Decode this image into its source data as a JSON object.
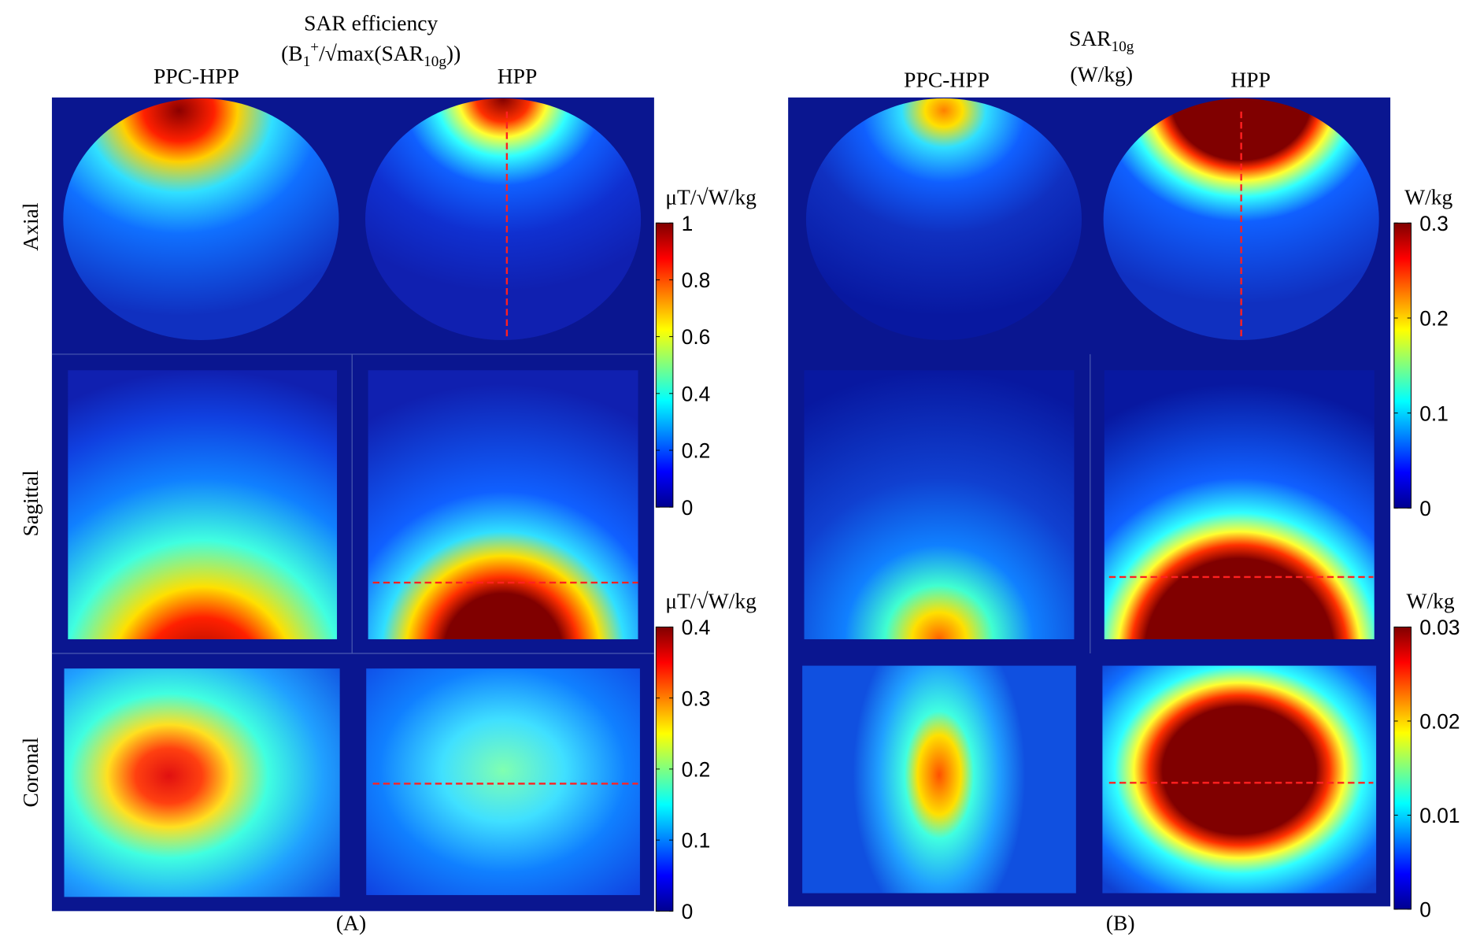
{
  "panel_a": {
    "title": "SAR efficiency",
    "formula_parts": [
      {
        "text": "(B"
      },
      {
        "text": "1",
        "script": "sub"
      },
      {
        "text": "+",
        "script": "sup"
      },
      {
        "text": "/√max(SAR"
      },
      {
        "text": "10g",
        "script": "sub"
      },
      {
        "text": "))"
      }
    ],
    "columns": [
      "PPC-HPP",
      "HPP"
    ],
    "rows": [
      "Axial",
      "Sagittal",
      "Coronal"
    ],
    "colorbars": [
      {
        "unit": "μT/√W/kg",
        "lim": [
          0,
          1
        ],
        "ticks": [
          0,
          0.2,
          0.4,
          0.6,
          0.8,
          1
        ]
      },
      {
        "unit": "μT/√W/kg",
        "lim": [
          0,
          0.4
        ],
        "ticks": [
          0,
          0.1,
          0.2,
          0.3,
          0.4
        ]
      }
    ],
    "caption": "(A)"
  },
  "panel_b": {
    "formula_parts": [
      {
        "text": "SAR"
      },
      {
        "text": "10g",
        "script": "sub"
      }
    ],
    "title": "(W/kg)",
    "columns": [
      "PPC-HPP",
      "HPP"
    ],
    "colorbars": [
      {
        "unit": "W/kg",
        "lim": [
          0,
          0.3
        ],
        "ticks": [
          0,
          0.1,
          0.2,
          0.3
        ]
      },
      {
        "unit": "W/kg",
        "lim": [
          0,
          0.03
        ],
        "ticks": [
          0,
          0.01,
          0.02,
          0.03
        ]
      }
    ],
    "caption": "(B)"
  }
}
